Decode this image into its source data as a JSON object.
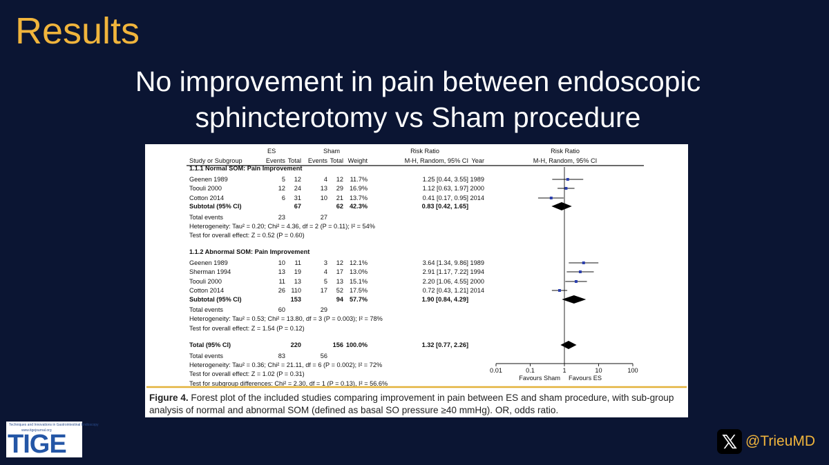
{
  "slide": {
    "title": "Results",
    "subtitle_line1": "No improvement in pain between endoscopic",
    "subtitle_line2": "sphincterotomy vs Sham procedure",
    "handle": "@TrieuMD",
    "logo": "TIGE",
    "logo_tagline": "Techniques and Innovations in Gastrointestinal Endoscopy",
    "logo_url": "www.tigejournal.org",
    "x_icon": "x-logo-icon"
  },
  "table": {
    "header": {
      "es": "ES",
      "sham": "Sham",
      "rr_left": "Risk Ratio",
      "rr_right": "Risk Ratio",
      "study": "Study or Subgroup",
      "events": "Events",
      "total": "Total",
      "weight": "Weight",
      "method_left": "M-H, Random, 95% CI",
      "year": "Year",
      "method_right": "M-H, Random, 95% CI"
    },
    "groups": [
      {
        "title": "1.1.1 Normal SOM: Pain Improvement",
        "studies": [
          {
            "name": "Geenen 1989",
            "es_events": "5",
            "es_total": "12",
            "sham_events": "4",
            "sham_total": "12",
            "weight": "11.7%",
            "ci": "1.25 [0.44, 3.55]",
            "year": "1989",
            "rr": 1.25,
            "lo": 0.44,
            "hi": 3.55
          },
          {
            "name": "Toouli 2000",
            "es_events": "12",
            "es_total": "24",
            "sham_events": "13",
            "sham_total": "29",
            "weight": "16.9%",
            "ci": "1.12 [0.63, 1.97]",
            "year": "2000",
            "rr": 1.12,
            "lo": 0.63,
            "hi": 1.97
          },
          {
            "name": "Cotton 2014",
            "es_events": "6",
            "es_total": "31",
            "sham_events": "10",
            "sham_total": "21",
            "weight": "13.7%",
            "ci": "0.41 [0.17, 0.95]",
            "year": "2014",
            "rr": 0.41,
            "lo": 0.17,
            "hi": 0.95
          }
        ],
        "subtotal": {
          "label": "Subtotal (95% CI)",
          "es_total": "67",
          "sham_total": "62",
          "weight": "42.3%",
          "ci": "0.83 [0.42, 1.65]",
          "rr": 0.83,
          "lo": 0.42,
          "hi": 1.65
        },
        "total_events": {
          "label": "Total events",
          "es": "23",
          "sham": "27"
        },
        "heterogeneity": "Heterogeneity: Tau² = 0.20; Chi² = 4.36, df = 2 (P = 0.11); I² = 54%",
        "overall": "Test for overall effect: Z = 0.52 (P = 0.60)"
      },
      {
        "title": "1.1.2 Abnormal SOM: Pain Improvement",
        "studies": [
          {
            "name": "Geenen 1989",
            "es_events": "10",
            "es_total": "11",
            "sham_events": "3",
            "sham_total": "12",
            "weight": "12.1%",
            "ci": "3.64 [1.34, 9.86]",
            "year": "1989",
            "rr": 3.64,
            "lo": 1.34,
            "hi": 9.86
          },
          {
            "name": "Sherman 1994",
            "es_events": "13",
            "es_total": "19",
            "sham_events": "4",
            "sham_total": "17",
            "weight": "13.0%",
            "ci": "2.91 [1.17, 7.22]",
            "year": "1994",
            "rr": 2.91,
            "lo": 1.17,
            "hi": 7.22
          },
          {
            "name": "Toouli 2000",
            "es_events": "11",
            "es_total": "13",
            "sham_events": "5",
            "sham_total": "13",
            "weight": "15.1%",
            "ci": "2.20 [1.06, 4.55]",
            "year": "2000",
            "rr": 2.2,
            "lo": 1.06,
            "hi": 4.55
          },
          {
            "name": "Cotton 2014",
            "es_events": "26",
            "es_total": "110",
            "sham_events": "17",
            "sham_total": "52",
            "weight": "17.5%",
            "ci": "0.72 [0.43, 1.21]",
            "year": "2014",
            "rr": 0.72,
            "lo": 0.43,
            "hi": 1.21
          }
        ],
        "subtotal": {
          "label": "Subtotal (95% CI)",
          "es_total": "153",
          "sham_total": "94",
          "weight": "57.7%",
          "ci": "1.90 [0.84, 4.29]",
          "rr": 1.9,
          "lo": 0.84,
          "hi": 4.29
        },
        "total_events": {
          "label": "Total events",
          "es": "60",
          "sham": "29"
        },
        "heterogeneity": "Heterogeneity: Tau² = 0.53; Chi² = 13.80, df = 3 (P = 0.003); I² = 78%",
        "overall": "Test for overall effect: Z = 1.54 (P = 0.12)"
      }
    ],
    "total": {
      "label": "Total (95% CI)",
      "es_total": "220",
      "sham_total": "156",
      "weight": "100.0%",
      "ci": "1.32 [0.77, 2.26]",
      "rr": 1.32,
      "lo": 0.77,
      "hi": 2.26
    },
    "total_events": {
      "label": "Total events",
      "es": "83",
      "sham": "56"
    },
    "heterogeneity": "Heterogeneity: Tau² = 0.36; Chi² = 21.11, df = 6 (P = 0.002); I² = 72%",
    "overall": "Test for overall effect: Z = 1.02 (P = 0.31)",
    "subgroup": "Test for subgroup differences: Chi² = 2.30, df = 1 (P = 0.13), I² = 56.6%",
    "axis": {
      "ticks": [
        {
          "value": 0.01,
          "label": "0.01"
        },
        {
          "value": 0.1,
          "label": "0.1"
        },
        {
          "value": 1,
          "label": "1"
        },
        {
          "value": 10,
          "label": "10"
        },
        {
          "value": 100,
          "label": "100"
        }
      ],
      "favours_left": "Favours Sham",
      "favours_right": "Favours ES"
    }
  },
  "caption": {
    "label": "Figure 4.",
    "text": " Forest plot of the included studies comparing improvement in pain between ES and sham procedure, with sub-group analysis of normal and abnormal SOM (defined as basal SO pressure ≥40 mmHg). OR, odds ratio."
  },
  "chart_data": {
    "type": "forest",
    "xscale": "log",
    "xlim": [
      0.01,
      100
    ],
    "xticks": [
      0.01,
      0.1,
      1,
      10,
      100
    ],
    "xlabel_left": "Favours Sham",
    "xlabel_right": "Favours ES",
    "points": [
      {
        "study": "Geenen 1989",
        "group": "1.1.1 Normal SOM: Pain Improvement",
        "rr": 1.25,
        "lo": 0.44,
        "hi": 3.55,
        "weight": 11.7
      },
      {
        "study": "Toouli 2000",
        "group": "1.1.1 Normal SOM: Pain Improvement",
        "rr": 1.12,
        "lo": 0.63,
        "hi": 1.97,
        "weight": 16.9
      },
      {
        "study": "Cotton 2014",
        "group": "1.1.1 Normal SOM: Pain Improvement",
        "rr": 0.41,
        "lo": 0.17,
        "hi": 0.95,
        "weight": 13.7
      },
      {
        "study": "Subtotal (95% CI)",
        "group": "1.1.1 Normal SOM: Pain Improvement",
        "rr": 0.83,
        "lo": 0.42,
        "hi": 1.65,
        "weight": 42.3
      },
      {
        "study": "Geenen 1989",
        "group": "1.1.2 Abnormal SOM: Pain Improvement",
        "rr": 3.64,
        "lo": 1.34,
        "hi": 9.86,
        "weight": 12.1
      },
      {
        "study": "Sherman 1994",
        "group": "1.1.2 Abnormal SOM: Pain Improvement",
        "rr": 2.91,
        "lo": 1.17,
        "hi": 7.22,
        "weight": 13.0
      },
      {
        "study": "Toouli 2000",
        "group": "1.1.2 Abnormal SOM: Pain Improvement",
        "rr": 2.2,
        "lo": 1.06,
        "hi": 4.55,
        "weight": 15.1
      },
      {
        "study": "Cotton 2014",
        "group": "1.1.2 Abnormal SOM: Pain Improvement",
        "rr": 0.72,
        "lo": 0.43,
        "hi": 1.21,
        "weight": 17.5
      },
      {
        "study": "Subtotal (95% CI)",
        "group": "1.1.2 Abnormal SOM: Pain Improvement",
        "rr": 1.9,
        "lo": 0.84,
        "hi": 4.29,
        "weight": 57.7
      },
      {
        "study": "Total (95% CI)",
        "group": "",
        "rr": 1.32,
        "lo": 0.77,
        "hi": 2.26,
        "weight": 100.0
      }
    ]
  }
}
